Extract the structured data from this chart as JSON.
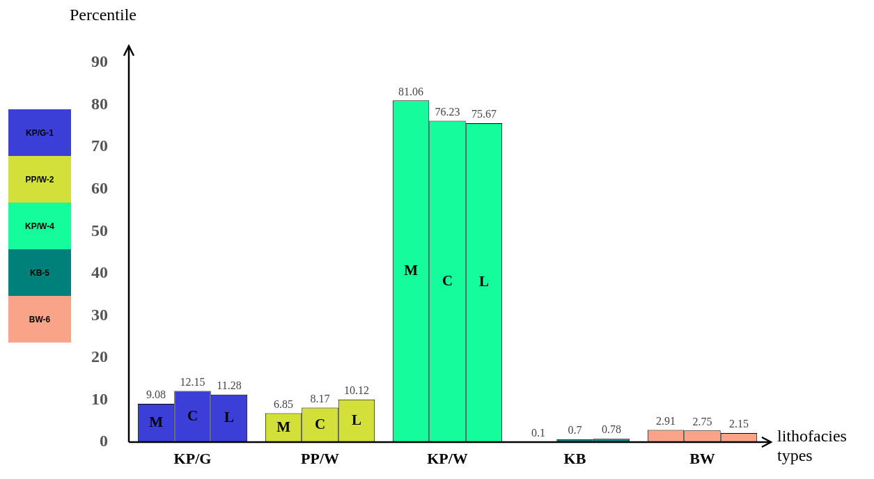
{
  "chart_data": {
    "type": "bar",
    "ylabel": "Percentile",
    "xlabel": "lithofacies types",
    "categories": [
      "KP/G",
      "PP/W",
      "KP/W",
      "KB",
      "BW"
    ],
    "series": [
      {
        "name": "M",
        "colors": [
          "#3b3fd8",
          "#d4e03a",
          "#14fc9c",
          "#00807a",
          "#f9a488"
        ],
        "values": [
          9.08,
          6.85,
          81.06,
          0.1,
          2.91
        ]
      },
      {
        "name": "C",
        "colors": [
          "#3b3fd8",
          "#d4e03a",
          "#14fc9c",
          "#00807a",
          "#f9a488"
        ],
        "values": [
          12.15,
          8.17,
          76.23,
          0.7,
          2.75
        ]
      },
      {
        "name": "L",
        "colors": [
          "#3b3fd8",
          "#d4e03a",
          "#14fc9c",
          "#00807a",
          "#f9a488"
        ],
        "values": [
          11.28,
          10.12,
          75.67,
          0.78,
          2.15
        ]
      }
    ],
    "ylim": [
      0,
      94
    ],
    "yticks": [
      0,
      10,
      20,
      30,
      40,
      50,
      60,
      70,
      80,
      90
    ],
    "data_labels": true,
    "grid": false,
    "legend": false,
    "annotations": [
      "KP/G-1",
      "PP/W-2",
      "KP/W-4",
      "KB-5",
      "BW-6"
    ]
  }
}
